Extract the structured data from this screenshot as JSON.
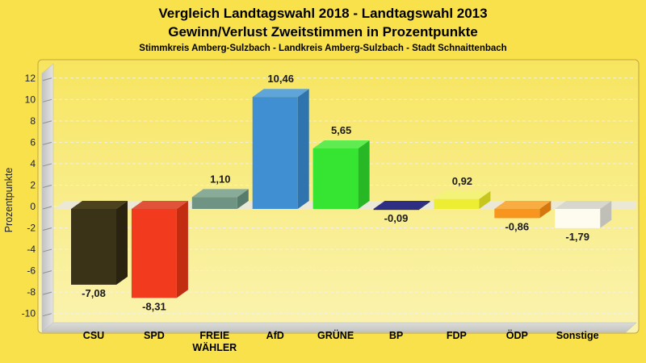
{
  "title": {
    "line1": "Vergleich Landtagswahl 2018 - Landtagswahl 2013",
    "line2": "Gewinn/Verlust Zweitstimmen in Prozentpunkte",
    "subtitle": "Stimmkreis Amberg-Sulzbach - Landkreis Amberg-Sulzbach - Stadt Schnaittenbach"
  },
  "chart_data": {
    "type": "bar",
    "title": "Vergleich Landtagswahl 2018 - Landtagswahl 2013",
    "subtitle2": "Gewinn/Verlust Zweitstimmen in Prozentpunkte",
    "subtitle3": "Stimmkreis Amberg-Sulzbach - Landkreis Amberg-Sulzbach - Stadt Schnaittenbach",
    "categories": [
      "CSU",
      "SPD",
      "FREIE WÄHLER",
      "AfD",
      "GRÜNE",
      "BP",
      "FDP",
      "ÖDP",
      "Sonstige"
    ],
    "values": [
      -7.08,
      -8.31,
      1.1,
      10.46,
      5.65,
      -0.09,
      0.92,
      -0.86,
      -1.79
    ],
    "value_labels": [
      "-7,08",
      "-8,31",
      "1,10",
      "10,46",
      "5,65",
      "-0,09",
      "0,92",
      "-0,86",
      "-1,79"
    ],
    "bar_colors": [
      {
        "party": "CSU",
        "front": "#3B3317",
        "top": "#4C431E",
        "side": "#292310"
      },
      {
        "party": "SPD",
        "front": "#F13A1E",
        "top": "#E0533A",
        "side": "#C22D12"
      },
      {
        "party": "FREIE WÄHLER",
        "front": "#6F9484",
        "top": "#89AB9A",
        "side": "#587C6C"
      },
      {
        "party": "AfD",
        "front": "#3F8FD2",
        "top": "#5FA5DA",
        "side": "#2F74AE"
      },
      {
        "party": "GRÜNE",
        "front": "#35E531",
        "top": "#60EC50",
        "side": "#28B826"
      },
      {
        "party": "BP",
        "front": "#26266E",
        "top": "#2E2E84",
        "side": "#1C1C58"
      },
      {
        "party": "FDP",
        "front": "#EDED33",
        "top": "#F3F377",
        "side": "#C6C61E"
      },
      {
        "party": "ÖDP",
        "front": "#F7951F",
        "top": "#F9AC42",
        "side": "#D4770C"
      },
      {
        "party": "Sonstige",
        "front": "#FDFCEF",
        "top": "#D8D7CE",
        "side": "#C0BFB7"
      }
    ],
    "xlabel": "",
    "ylabel": "Prozentpunkte",
    "ylim": [
      -10,
      12
    ],
    "yticks": [
      -10,
      -8,
      -6,
      -4,
      -2,
      0,
      2,
      4,
      6,
      8,
      10,
      12
    ],
    "grid": true,
    "legend": "none",
    "background_color": "#F8E14B",
    "plot_gradient": [
      "#F7E55E",
      "#F9EE92",
      "#FAF3B0"
    ],
    "wall_color": "#CDCDCD",
    "zero_plane_color": "#ECE8D6",
    "gridline_color": "#F2F1E9",
    "text_color": "#1A1A1A"
  }
}
